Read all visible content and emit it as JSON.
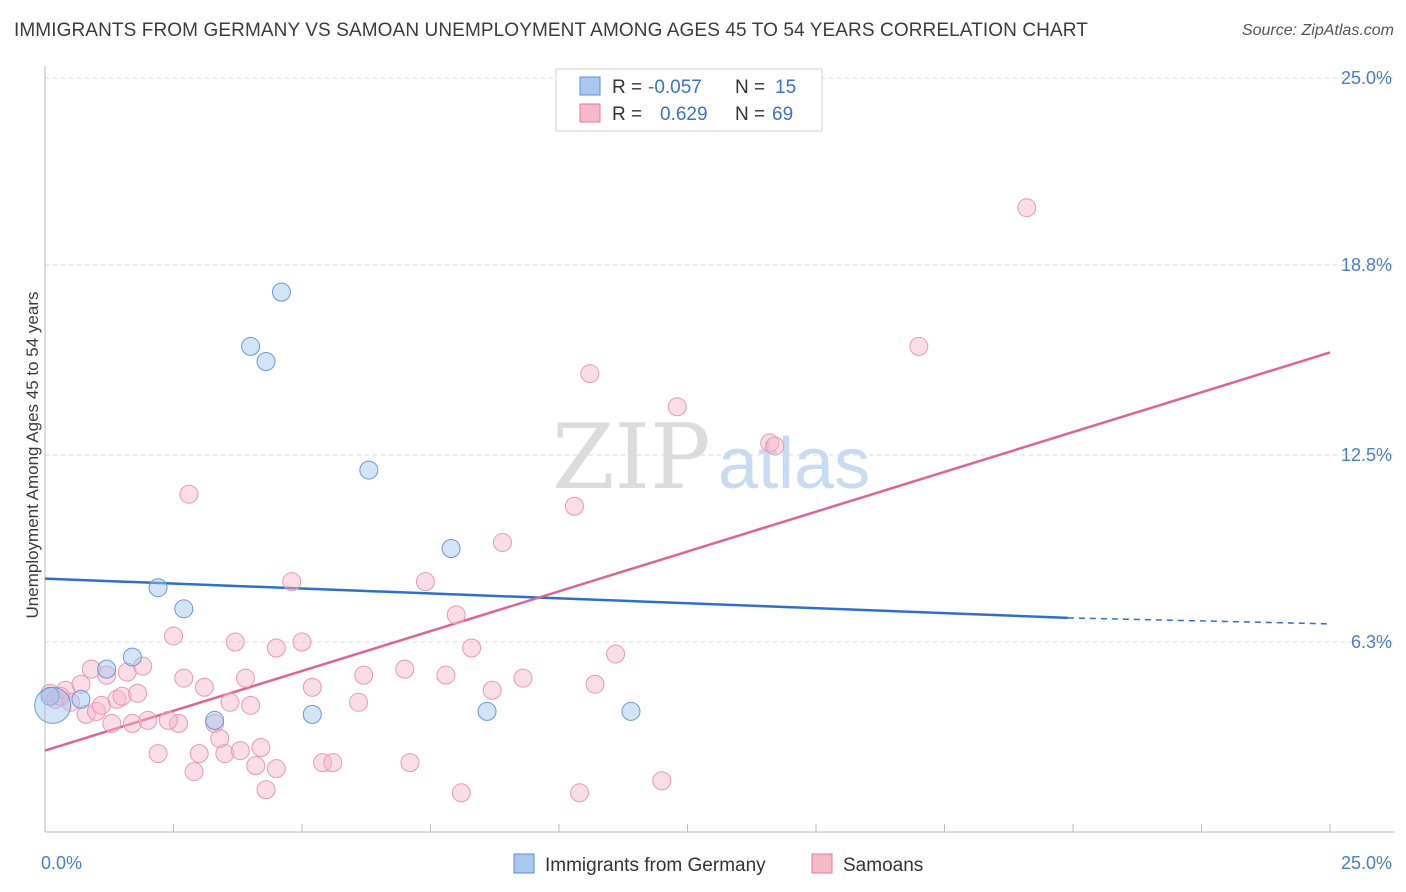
{
  "title": "IMMIGRANTS FROM GERMANY VS SAMOAN UNEMPLOYMENT AMONG AGES 45 TO 54 YEARS CORRELATION CHART",
  "source": "Source: ZipAtlas.com",
  "watermark": {
    "zip": "ZIP",
    "atlas": "atlas"
  },
  "legend": {
    "series1": {
      "r_label": "R =",
      "r_value": "-0.057",
      "n_label": "N =",
      "n_value": "15",
      "color": "#a9c8f0",
      "border": "#5b8fd6"
    },
    "series2": {
      "r_label": "R =",
      "r_value": "0.629",
      "n_label": "N =",
      "n_value": "69",
      "color": "#f6b9cb",
      "border": "#e77ba0"
    }
  },
  "bottom_legend": {
    "item1": "Immigrants from Germany",
    "item2": "Samoans"
  },
  "colors": {
    "blue_line": "#2f6fcf",
    "pink_line": "#e06592",
    "blue_fill": "rgba(160,195,240,0.45)",
    "blue_stroke": "#6b99d8",
    "pink_fill": "rgba(246,180,202,0.45)",
    "pink_stroke": "#e89ab4",
    "axis_text": "#4a7fc6",
    "grid": "#d9d9d9"
  },
  "chart_data": {
    "type": "scatter",
    "title": "IMMIGRANTS FROM GERMANY VS SAMOAN UNEMPLOYMENT AMONG AGES 45 TO 54 YEARS CORRELATION CHART",
    "xlabel": "",
    "ylabel": "Unemployment Among Ages 45 to 54 years",
    "xlim": [
      0,
      25
    ],
    "ylim": [
      0,
      25
    ],
    "x_tick_labels": [
      "0.0%",
      "25.0%"
    ],
    "y_ticks": [
      6.3,
      12.5,
      18.8,
      25.0
    ],
    "y_tick_labels": [
      "6.3%",
      "12.5%",
      "18.8%",
      "25.0%"
    ],
    "grid": true,
    "legend_position": "top-center",
    "series": [
      {
        "name": "Immigrants from Germany",
        "color": "#a9c8f0",
        "points": [
          [
            0.1,
            4.5
          ],
          [
            0.7,
            4.4
          ],
          [
            1.2,
            5.4
          ],
          [
            1.7,
            5.8
          ],
          [
            2.2,
            8.1
          ],
          [
            2.7,
            7.4
          ],
          [
            3.3,
            3.7
          ],
          [
            4.0,
            16.1
          ],
          [
            4.3,
            15.6
          ],
          [
            4.6,
            17.9
          ],
          [
            5.2,
            3.9
          ],
          [
            6.3,
            12.0
          ],
          [
            7.9,
            9.4
          ],
          [
            8.6,
            4.0
          ],
          [
            11.4,
            4.0
          ]
        ],
        "trend": {
          "x": [
            0,
            19.9
          ],
          "y": [
            8.4,
            7.1
          ],
          "dashed_to": [
            25.0,
            6.9
          ]
        }
      },
      {
        "name": "Samoans",
        "color": "#f6b9cb",
        "points": [
          [
            0.1,
            4.6
          ],
          [
            0.2,
            4.4
          ],
          [
            0.4,
            4.7
          ],
          [
            0.5,
            4.3
          ],
          [
            0.7,
            4.9
          ],
          [
            0.8,
            3.9
          ],
          [
            0.9,
            5.4
          ],
          [
            1.0,
            4.0
          ],
          [
            1.1,
            4.2
          ],
          [
            1.2,
            5.2
          ],
          [
            1.3,
            3.6
          ],
          [
            1.4,
            4.4
          ],
          [
            1.5,
            4.5
          ],
          [
            1.6,
            5.3
          ],
          [
            1.7,
            3.6
          ],
          [
            1.8,
            4.6
          ],
          [
            1.9,
            5.5
          ],
          [
            2.0,
            3.7
          ],
          [
            2.2,
            2.6
          ],
          [
            2.5,
            6.5
          ],
          [
            2.6,
            3.6
          ],
          [
            2.7,
            5.1
          ],
          [
            2.8,
            11.2
          ],
          [
            2.9,
            2.0
          ],
          [
            3.0,
            2.6
          ],
          [
            3.1,
            4.8
          ],
          [
            3.3,
            3.6
          ],
          [
            3.4,
            3.1
          ],
          [
            3.5,
            2.6
          ],
          [
            3.6,
            4.3
          ],
          [
            3.7,
            6.3
          ],
          [
            3.8,
            2.7
          ],
          [
            3.9,
            5.1
          ],
          [
            4.0,
            4.2
          ],
          [
            4.1,
            2.2
          ],
          [
            4.2,
            2.8
          ],
          [
            4.3,
            1.4
          ],
          [
            4.5,
            2.1
          ],
          [
            4.5,
            6.1
          ],
          [
            4.8,
            8.3
          ],
          [
            5.0,
            6.3
          ],
          [
            5.2,
            4.8
          ],
          [
            5.4,
            2.3
          ],
          [
            5.6,
            2.3
          ],
          [
            6.2,
            5.2
          ],
          [
            6.1,
            4.3
          ],
          [
            7.0,
            5.4
          ],
          [
            7.1,
            2.3
          ],
          [
            7.4,
            8.3
          ],
          [
            7.8,
            5.2
          ],
          [
            8.0,
            7.2
          ],
          [
            8.1,
            1.3
          ],
          [
            8.3,
            6.1
          ],
          [
            8.7,
            4.7
          ],
          [
            8.9,
            9.6
          ],
          [
            9.3,
            5.1
          ],
          [
            10.3,
            10.8
          ],
          [
            10.4,
            1.3
          ],
          [
            10.6,
            15.2
          ],
          [
            10.7,
            4.9
          ],
          [
            11.1,
            5.9
          ],
          [
            12.0,
            1.7
          ],
          [
            12.3,
            14.1
          ],
          [
            14.1,
            12.9
          ],
          [
            14.2,
            12.8
          ],
          [
            17.0,
            16.1
          ],
          [
            19.1,
            20.7
          ],
          [
            0.3,
            4.5
          ],
          [
            2.4,
            3.7
          ]
        ],
        "trend": {
          "x": [
            0,
            25.0
          ],
          "y": [
            2.7,
            15.9
          ]
        }
      }
    ]
  }
}
